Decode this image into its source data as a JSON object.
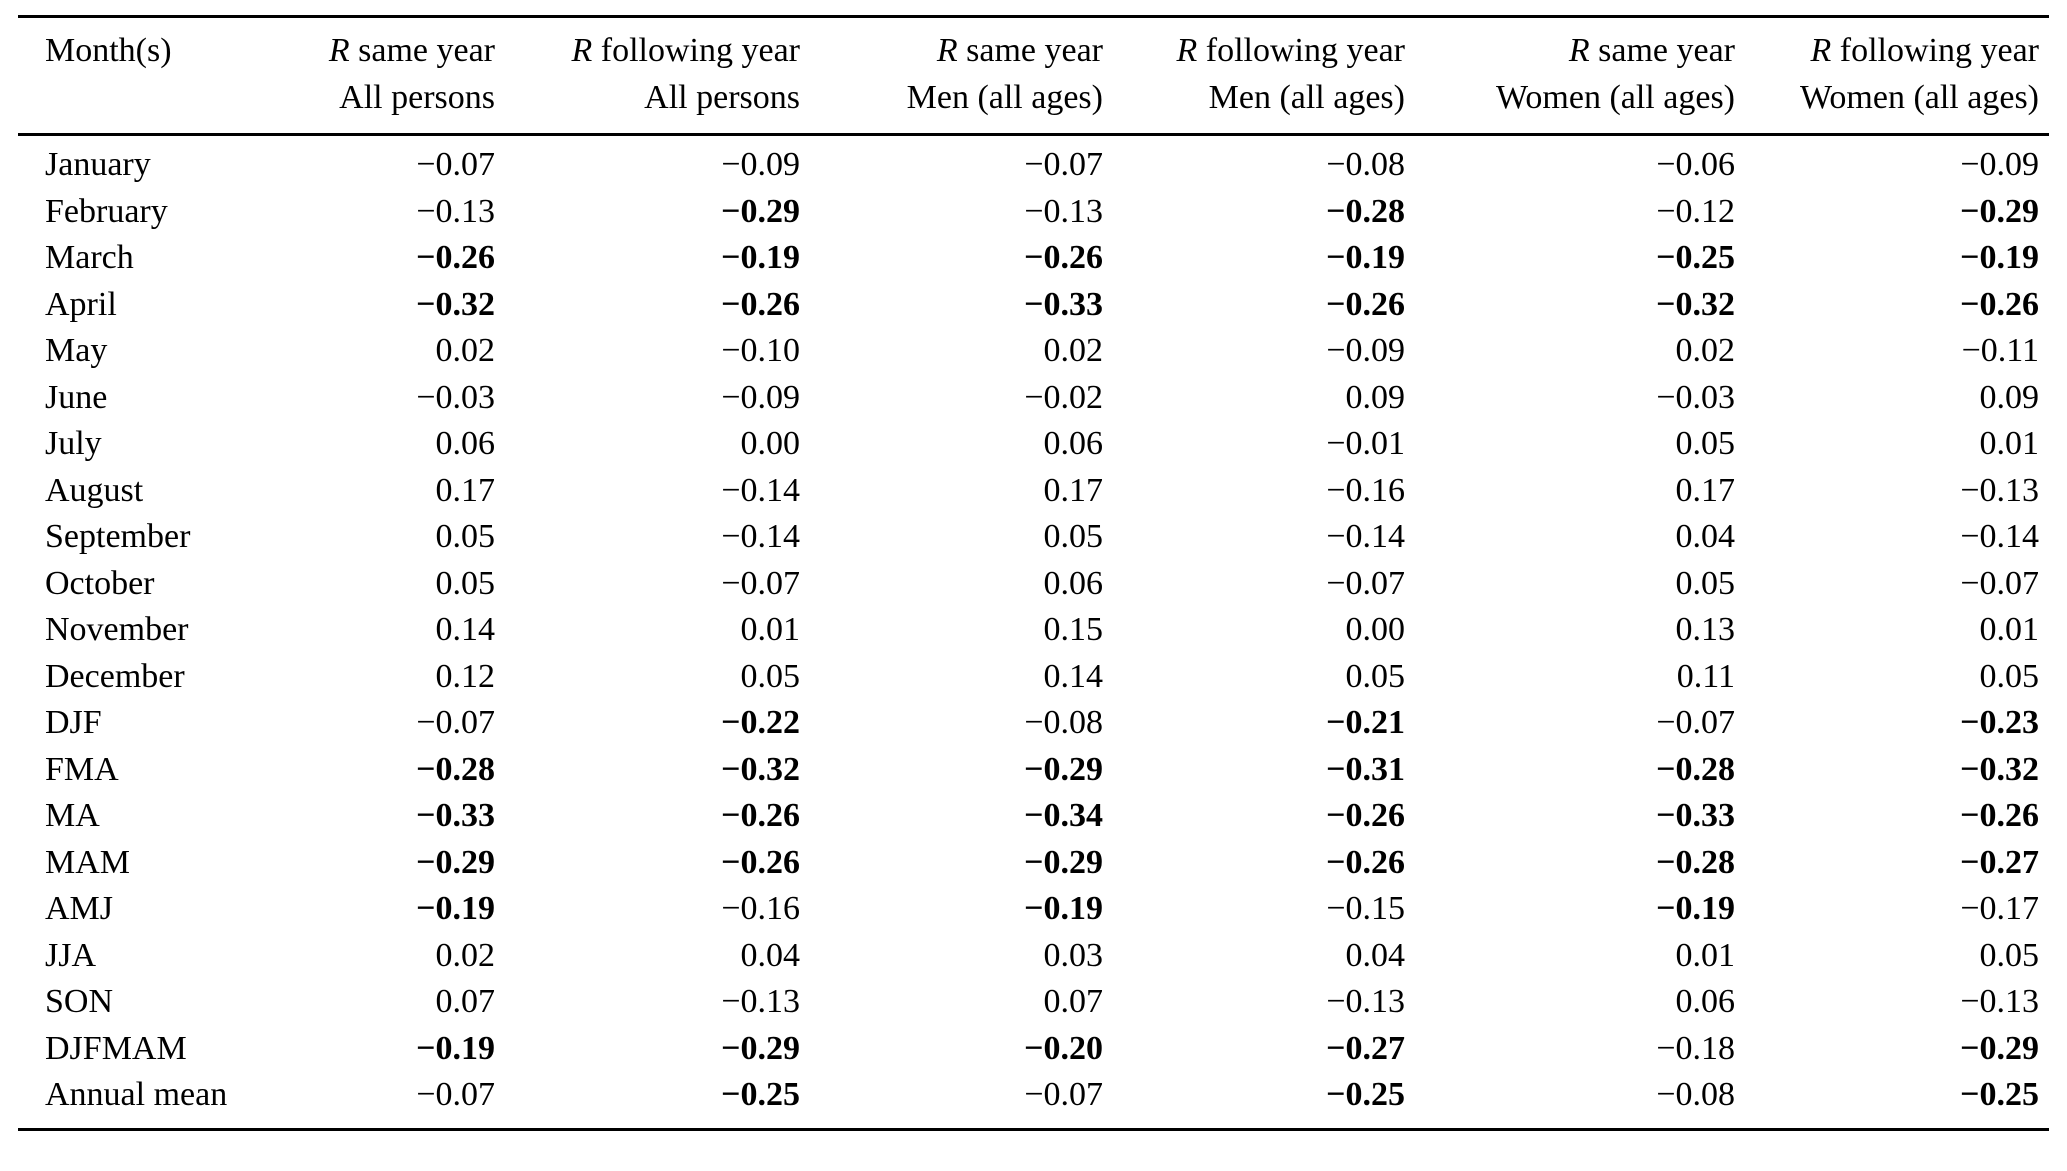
{
  "table": {
    "columns": [
      {
        "label": "Month(s)"
      },
      {
        "symbol": "R",
        "line1": "same year",
        "line2": "All persons"
      },
      {
        "symbol": "R",
        "line1": "following year",
        "line2": "All persons"
      },
      {
        "symbol": "R",
        "line1": "same year",
        "line2": "Men (all ages)"
      },
      {
        "symbol": "R",
        "line1": "following year",
        "line2": "Men (all ages)"
      },
      {
        "symbol": "R",
        "line1": "same year",
        "line2": "Women (all ages)"
      },
      {
        "symbol": "R",
        "line1": "following year",
        "line2": "Women (all ages)"
      }
    ],
    "rows": [
      {
        "label": "January",
        "values": [
          "−0.07",
          "−0.09",
          "−0.07",
          "−0.08",
          "−0.06",
          "−0.09"
        ],
        "bold": [
          false,
          false,
          false,
          false,
          false,
          false
        ]
      },
      {
        "label": "February",
        "values": [
          "−0.13",
          "−0.29",
          "−0.13",
          "−0.28",
          "−0.12",
          "−0.29"
        ],
        "bold": [
          false,
          true,
          false,
          true,
          false,
          true
        ]
      },
      {
        "label": "March",
        "values": [
          "−0.26",
          "−0.19",
          "−0.26",
          "−0.19",
          "−0.25",
          "−0.19"
        ],
        "bold": [
          true,
          true,
          true,
          true,
          true,
          true
        ]
      },
      {
        "label": "April",
        "values": [
          "−0.32",
          "−0.26",
          "−0.33",
          "−0.26",
          "−0.32",
          "−0.26"
        ],
        "bold": [
          true,
          true,
          true,
          true,
          true,
          true
        ]
      },
      {
        "label": "May",
        "values": [
          "0.02",
          "−0.10",
          "0.02",
          "−0.09",
          "0.02",
          "−0.11"
        ],
        "bold": [
          false,
          false,
          false,
          false,
          false,
          false
        ]
      },
      {
        "label": "June",
        "values": [
          "−0.03",
          "−0.09",
          "−0.02",
          "0.09",
          "−0.03",
          "0.09"
        ],
        "bold": [
          false,
          false,
          false,
          false,
          false,
          false
        ]
      },
      {
        "label": "July",
        "values": [
          "0.06",
          "0.00",
          "0.06",
          "−0.01",
          "0.05",
          "0.01"
        ],
        "bold": [
          false,
          false,
          false,
          false,
          false,
          false
        ]
      },
      {
        "label": "August",
        "values": [
          "0.17",
          "−0.14",
          "0.17",
          "−0.16",
          "0.17",
          "−0.13"
        ],
        "bold": [
          false,
          false,
          false,
          false,
          false,
          false
        ]
      },
      {
        "label": "September",
        "values": [
          "0.05",
          "−0.14",
          "0.05",
          "−0.14",
          "0.04",
          "−0.14"
        ],
        "bold": [
          false,
          false,
          false,
          false,
          false,
          false
        ]
      },
      {
        "label": "October",
        "values": [
          "0.05",
          "−0.07",
          "0.06",
          "−0.07",
          "0.05",
          "−0.07"
        ],
        "bold": [
          false,
          false,
          false,
          false,
          false,
          false
        ]
      },
      {
        "label": "November",
        "values": [
          "0.14",
          "0.01",
          "0.15",
          "0.00",
          "0.13",
          "0.01"
        ],
        "bold": [
          false,
          false,
          false,
          false,
          false,
          false
        ]
      },
      {
        "label": "December",
        "values": [
          "0.12",
          "0.05",
          "0.14",
          "0.05",
          "0.11",
          "0.05"
        ],
        "bold": [
          false,
          false,
          false,
          false,
          false,
          false
        ]
      },
      {
        "label": "DJF",
        "values": [
          "−0.07",
          "−0.22",
          "−0.08",
          "−0.21",
          "−0.07",
          "−0.23"
        ],
        "bold": [
          false,
          true,
          false,
          true,
          false,
          true
        ]
      },
      {
        "label": "FMA",
        "values": [
          "−0.28",
          "−0.32",
          "−0.29",
          "−0.31",
          "−0.28",
          "−0.32"
        ],
        "bold": [
          true,
          true,
          true,
          true,
          true,
          true
        ]
      },
      {
        "label": "MA",
        "values": [
          "−0.33",
          "−0.26",
          "−0.34",
          "−0.26",
          "−0.33",
          "−0.26"
        ],
        "bold": [
          true,
          true,
          true,
          true,
          true,
          true
        ]
      },
      {
        "label": "MAM",
        "values": [
          "−0.29",
          "−0.26",
          "−0.29",
          "−0.26",
          "−0.28",
          "−0.27"
        ],
        "bold": [
          true,
          true,
          true,
          true,
          true,
          true
        ]
      },
      {
        "label": "AMJ",
        "values": [
          "−0.19",
          "−0.16",
          "−0.19",
          "−0.15",
          "−0.19",
          "−0.17"
        ],
        "bold": [
          true,
          false,
          true,
          false,
          true,
          false
        ]
      },
      {
        "label": "JJA",
        "values": [
          "0.02",
          "0.04",
          "0.03",
          "0.04",
          "0.01",
          "0.05"
        ],
        "bold": [
          false,
          false,
          false,
          false,
          false,
          false
        ]
      },
      {
        "label": "SON",
        "values": [
          "0.07",
          "−0.13",
          "0.07",
          "−0.13",
          "0.06",
          "−0.13"
        ],
        "bold": [
          false,
          false,
          false,
          false,
          false,
          false
        ]
      },
      {
        "label": "DJFMAM",
        "values": [
          "−0.19",
          "−0.29",
          "−0.20",
          "−0.27",
          "−0.18",
          "−0.29"
        ],
        "bold": [
          true,
          true,
          true,
          true,
          false,
          true
        ]
      },
      {
        "label": "Annual mean",
        "values": [
          "−0.07",
          "−0.25",
          "−0.07",
          "−0.25",
          "−0.08",
          "−0.25"
        ],
        "bold": [
          false,
          true,
          false,
          true,
          false,
          true
        ]
      }
    ]
  }
}
